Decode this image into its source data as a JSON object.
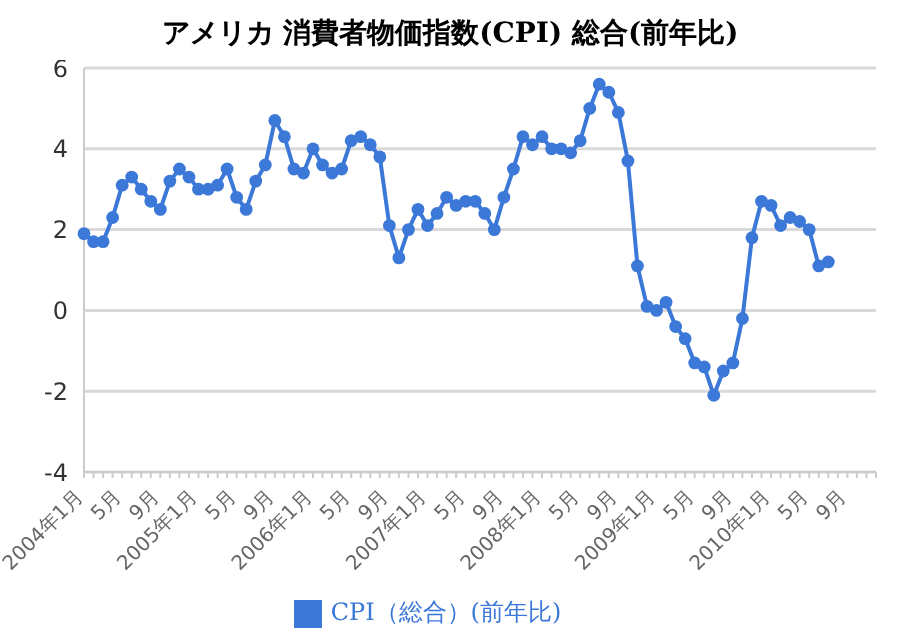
{
  "chart_data": {
    "type": "line",
    "title": "アメリカ 消費者物価指数(CPI) 総合(前年比)",
    "categories": [
      "2004年1月",
      null,
      null,
      null,
      "5月",
      null,
      null,
      null,
      "9月",
      null,
      null,
      null,
      "2005年1月",
      null,
      null,
      null,
      "5月",
      null,
      null,
      null,
      "9月",
      null,
      null,
      null,
      "2006年1月",
      null,
      null,
      null,
      "5月",
      null,
      null,
      null,
      "9月",
      null,
      null,
      null,
      "2007年1月",
      null,
      null,
      null,
      "5月",
      null,
      null,
      null,
      "9月",
      null,
      null,
      null,
      "2008年1月",
      null,
      null,
      null,
      "5月",
      null,
      null,
      null,
      "9月",
      null,
      null,
      null,
      "2009年1月",
      null,
      null,
      null,
      "5月",
      null,
      null,
      null,
      "9月",
      null,
      null,
      null,
      "2010年1月",
      null,
      null,
      null,
      "5月",
      null,
      null,
      null,
      "9月",
      null,
      null,
      null
    ],
    "series": [
      {
        "name": "CPI（総合）(前年比)",
        "color": "#3c78d8",
        "values": [
          1.9,
          1.7,
          1.7,
          2.3,
          3.1,
          3.3,
          3.0,
          2.7,
          2.5,
          3.2,
          3.5,
          3.3,
          3.0,
          3.0,
          3.1,
          3.5,
          2.8,
          2.5,
          3.2,
          3.6,
          4.7,
          4.3,
          3.5,
          3.4,
          4.0,
          3.6,
          3.4,
          3.5,
          4.2,
          4.3,
          4.1,
          3.8,
          2.1,
          1.3,
          2.0,
          2.5,
          2.1,
          2.4,
          2.8,
          2.6,
          2.7,
          2.7,
          2.4,
          2.0,
          2.8,
          3.5,
          4.3,
          4.1,
          4.3,
          4.0,
          4.0,
          3.9,
          4.2,
          5.0,
          5.6,
          5.4,
          4.9,
          3.7,
          1.1,
          0.1,
          0.0,
          0.2,
          -0.4,
          -0.7,
          -1.3,
          -1.4,
          -2.1,
          -1.5,
          -1.3,
          -0.2,
          1.8,
          2.7,
          2.6,
          2.1,
          2.3,
          2.2,
          2.0,
          1.1,
          1.2,
          null,
          null,
          null,
          null,
          null
        ]
      }
    ],
    "ylim": [
      -4,
      6
    ],
    "yticks": [
      -4,
      -2,
      0,
      2,
      4,
      6
    ],
    "grid": "y",
    "legend": "bottom",
    "marker": "circle",
    "line_style": "solid"
  }
}
